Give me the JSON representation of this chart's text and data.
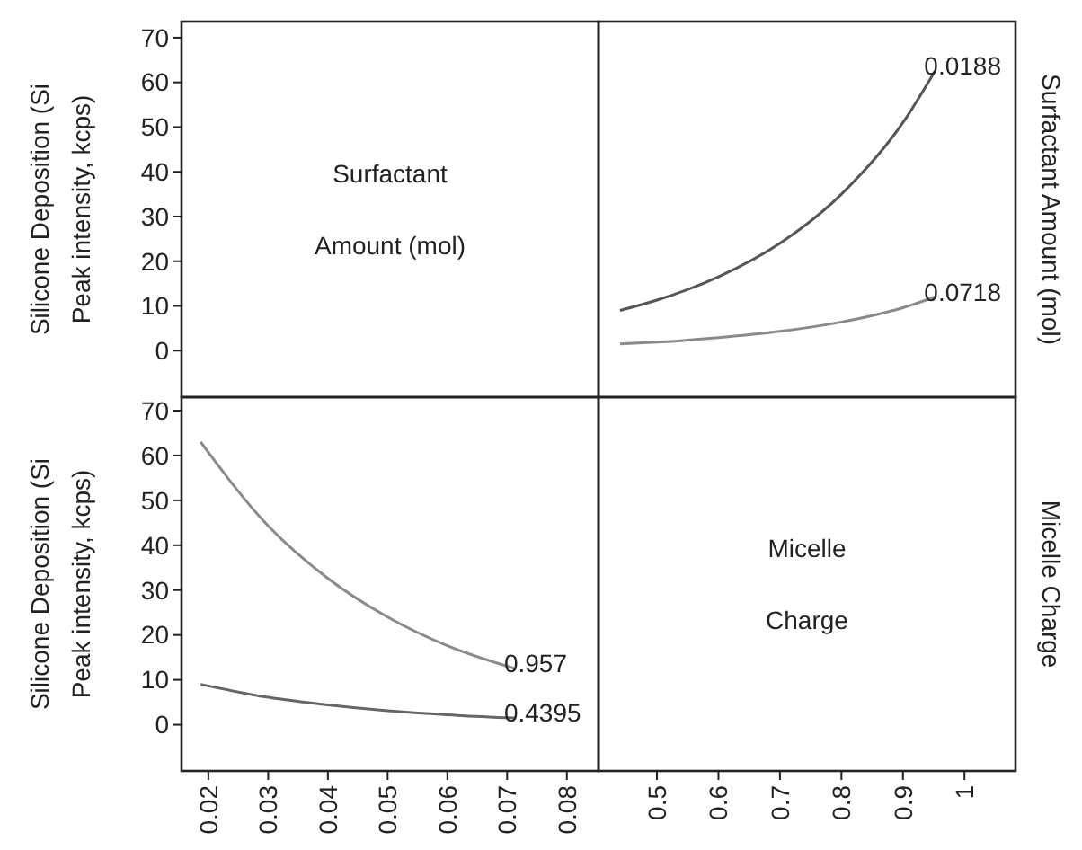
{
  "chart_data": [
    {
      "type": "line",
      "ylabel": "Silicone Deposition (Si Peak intensity, kcps)",
      "annotations": [
        "Surfactant",
        "Amount (mol)"
      ],
      "xlim": [
        0.0155,
        0.0853
      ],
      "ylim": [
        -10.4,
        73.6
      ],
      "yticks": [
        0,
        10,
        20,
        30,
        40,
        50,
        60,
        70
      ],
      "tick_labels": "y"
    },
    {
      "type": "line",
      "y2label": "Surfactant Amount (mol)",
      "xlim": [
        0.405,
        1.083
      ],
      "ylim": [
        -10.4,
        73.6
      ],
      "tick_labels": false,
      "series": [
        {
          "name": "0.0188",
          "color": "#555555",
          "x": [
            0.44,
            0.5,
            0.6,
            0.7,
            0.8,
            0.9,
            0.952
          ],
          "values": [
            9,
            11.3,
            16.5,
            24,
            35,
            51,
            62.5
          ]
        },
        {
          "name": "0.0718",
          "color": "#8a8a8a",
          "x": [
            0.44,
            0.5,
            0.6,
            0.7,
            0.8,
            0.9,
            0.952
          ],
          "values": [
            1.5,
            1.9,
            2.9,
            4.3,
            6.4,
            9.6,
            12
          ]
        }
      ]
    },
    {
      "type": "line",
      "ylabel": "Silicone Deposition (Si Peak intensity, kcps)",
      "xlim": [
        0.0155,
        0.0853
      ],
      "xticks": [
        0.02,
        0.03,
        0.04,
        0.05,
        0.06,
        0.07,
        0.08
      ],
      "ylim": [
        -10.3,
        73
      ],
      "yticks": [
        0,
        10,
        20,
        30,
        40,
        50,
        60,
        70
      ],
      "series": [
        {
          "name": "0.957",
          "color": "#8a8a8a",
          "x": [
            0.0187,
            0.03,
            0.04,
            0.05,
            0.06,
            0.0713
          ],
          "values": [
            63,
            44.3,
            32.6,
            24,
            17.6,
            12.5
          ]
        },
        {
          "name": "0.4395",
          "color": "#666666",
          "x": [
            0.0187,
            0.03,
            0.04,
            0.05,
            0.06,
            0.0713
          ],
          "values": [
            9,
            6.1,
            4.4,
            3.1,
            2.2,
            1.5
          ]
        }
      ]
    },
    {
      "type": "line",
      "y2label": "Micelle Charge",
      "annotations": [
        "Micelle",
        "Charge"
      ],
      "xlim": [
        0.405,
        1.083
      ],
      "xticks": [
        0.5,
        0.6,
        0.7,
        0.8,
        0.9,
        1
      ],
      "ylim": [
        -10.3,
        73
      ],
      "tick_labels": "x"
    }
  ]
}
